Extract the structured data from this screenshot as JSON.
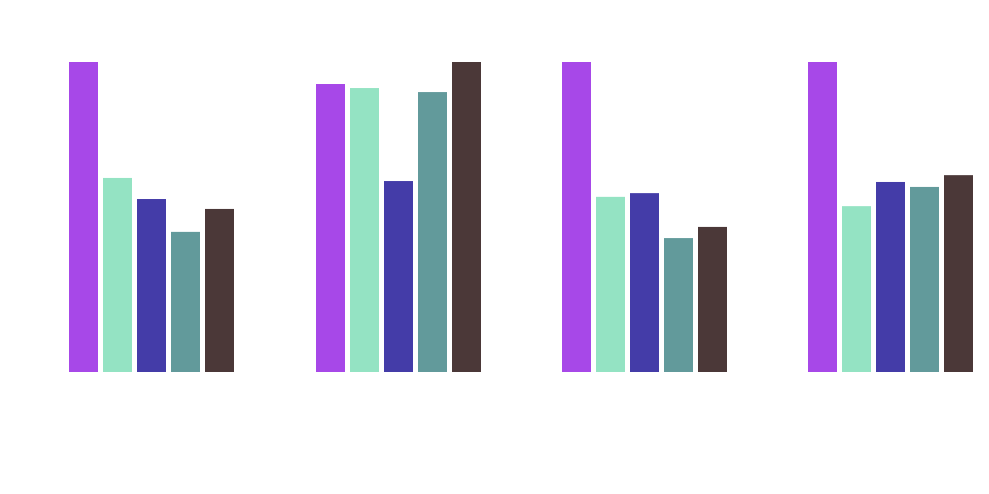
{
  "chart_data": {
    "type": "bar",
    "title": "",
    "xlabel": "",
    "ylabel": "",
    "grid": false,
    "legend": "none",
    "categories": [
      "",
      "",
      "",
      ""
    ],
    "ylim": [
      0,
      100
    ],
    "series": [
      {
        "color": "#a748e8",
        "values": [
          100,
          92.9,
          100,
          100
        ]
      },
      {
        "color": "#94e3c3",
        "values": [
          62.6,
          91.6,
          56.5,
          53.5
        ]
      },
      {
        "color": "#443ca8",
        "values": [
          55.8,
          61.6,
          57.7,
          61.3
        ]
      },
      {
        "color": "#629a9b",
        "values": [
          45.2,
          90.3,
          43.2,
          59.7
        ]
      },
      {
        "color": "#4b3838",
        "values": [
          52.6,
          100,
          46.8,
          63.5
        ]
      }
    ]
  }
}
